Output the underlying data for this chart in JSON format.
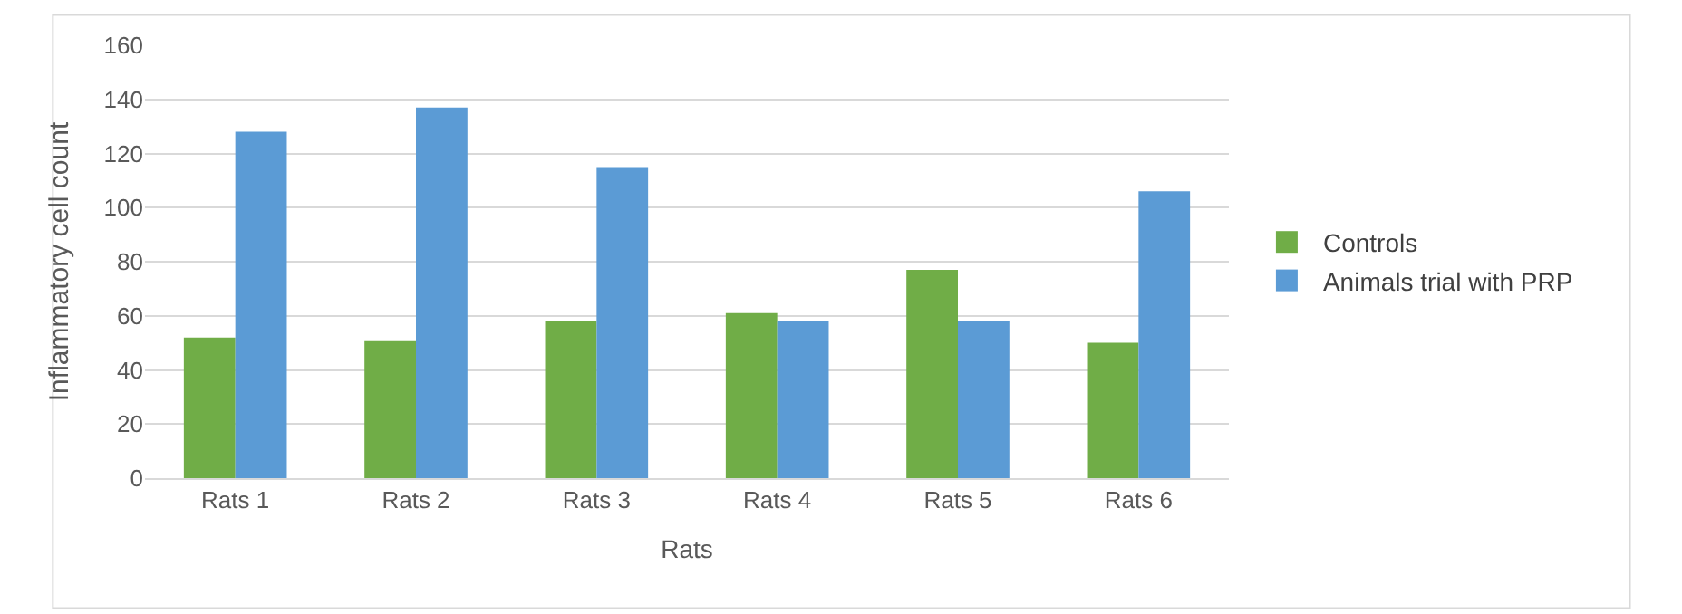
{
  "chart_data": {
    "type": "bar",
    "xlabel": "Rats",
    "ylabel": "Inflammatory cell count",
    "categories": [
      "Rats 1",
      "Rats 2",
      "Rats 3",
      "Rats 4",
      "Rats 5",
      "Rats 6"
    ],
    "series": [
      {
        "name": "Controls",
        "color": "#70ad47",
        "values": [
          52,
          51,
          58,
          61,
          77,
          50
        ]
      },
      {
        "name": "Animals trial with PRP",
        "color": "#5b9bd5",
        "values": [
          128,
          137,
          115,
          58,
          58,
          106
        ]
      }
    ],
    "ylim": [
      0,
      160
    ],
    "yticks": [
      0,
      20,
      40,
      60,
      80,
      100,
      120,
      140,
      160
    ],
    "grid": "y",
    "legend": "right"
  }
}
